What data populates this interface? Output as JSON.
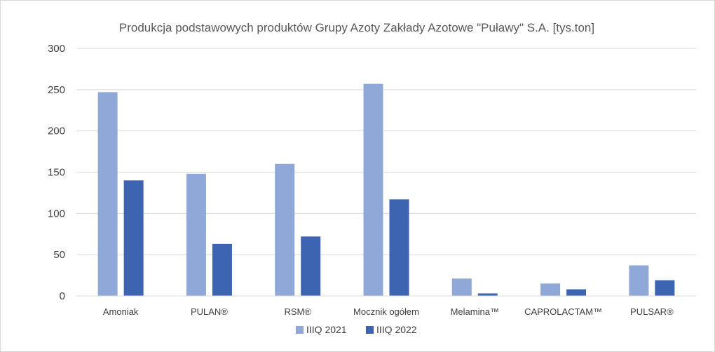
{
  "chart_data": {
    "type": "bar",
    "title": "Produkcja podstawowych produktów Grupy Azoty Zakłady Azotowe \"Puławy\" S.A. [tys.ton]",
    "categories": [
      "Amoniak",
      "PULAN®",
      "RSM®",
      "Mocznik ogółem",
      "Melamina™",
      "CAPROLACTAM™",
      "PULSAR®"
    ],
    "series": [
      {
        "name": "IIIQ 2021",
        "color": "#8fa8d8",
        "values": [
          247,
          148,
          160,
          257,
          21,
          15,
          37
        ]
      },
      {
        "name": "IIIQ 2022",
        "color": "#3d64b1",
        "values": [
          140,
          63,
          72,
          117,
          3,
          8,
          19
        ]
      }
    ],
    "ylim": [
      0,
      300
    ],
    "yticks": [
      0,
      50,
      100,
      150,
      200,
      250,
      300
    ],
    "grid": true,
    "legend_position": "bottom"
  }
}
